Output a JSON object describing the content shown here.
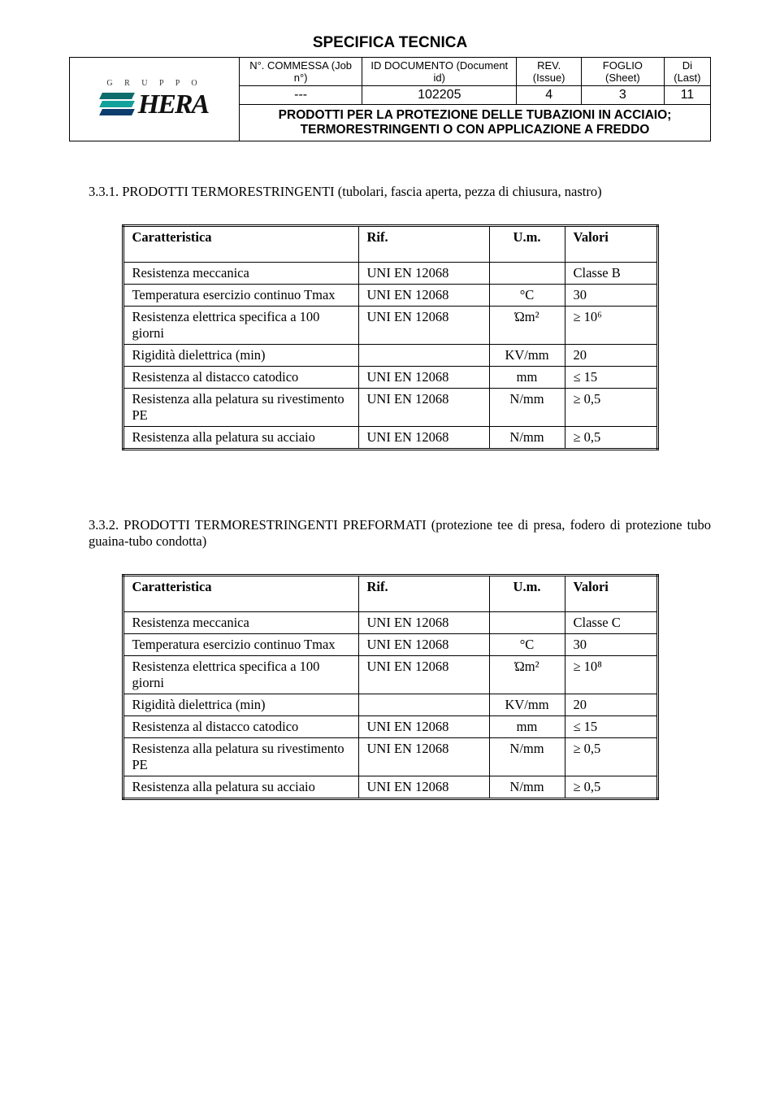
{
  "header": {
    "title": "SPECIFICA TECNICA",
    "labels": {
      "commessa": "N°. COMMESSA (Job n°)",
      "docid": "ID DOCUMENTO (Document id)",
      "rev": "REV. (Issue)",
      "foglio": "FOGLIO (Sheet)",
      "di": "Di (Last)"
    },
    "values": {
      "commessa": "---",
      "docid": "102205",
      "rev": "4",
      "foglio": "3",
      "di": "11"
    },
    "subtitle_l1": "PRODOTTI PER LA PROTEZIONE DELLE TUBAZIONI IN ACCIAIO;",
    "subtitle_l2": "TERMORESTRINGENTI O CON APPLICAZIONE A FREDDO",
    "logo": {
      "gruppo": "G R U P P O",
      "brand": "HERA",
      "stripe1": "#0d6c6c",
      "stripe2": "#12a19b",
      "stripe3": "#0d3d6c"
    }
  },
  "section1": {
    "heading": "3.3.1. PRODOTTI TERMORESTRINGENTI (tubolari, fascia aperta, pezza di chiusura, nastro)",
    "header": {
      "c": "Caratteristica",
      "r": "Rif.",
      "u": "U.m.",
      "v": "Valori"
    },
    "rows": [
      {
        "c": "Resistenza meccanica",
        "r": "UNI EN 12068",
        "u": "",
        "v": "Classe B"
      },
      {
        "c": "Temperatura esercizio continuo Tmax",
        "r": "UNI EN 12068",
        "u": "°C",
        "v": "30"
      },
      {
        "c": "Resistenza elettrica specifica a 100 giorni",
        "r": "UNI EN 12068",
        "u": "Ώm²",
        "v": "≥ 10⁶"
      },
      {
        "c": "Rigidità dielettrica (min)",
        "r": "",
        "u": "KV/mm",
        "v": "20"
      },
      {
        "c": "Resistenza al distacco catodico",
        "r": "UNI EN 12068",
        "u": "mm",
        "v": "≤ 15"
      },
      {
        "c": "Resistenza alla pelatura su rivestimento PE",
        "r": "UNI EN 12068",
        "u": "N/mm",
        "v": "≥ 0,5"
      },
      {
        "c": "Resistenza alla pelatura su acciaio",
        "r": "UNI EN 12068",
        "u": "N/mm",
        "v": "≥ 0,5"
      }
    ]
  },
  "section2": {
    "heading": "3.3.2. PRODOTTI TERMORESTRINGENTI PREFORMATI (protezione tee di presa, fodero di protezione tubo guaina-tubo condotta)",
    "header": {
      "c": "Caratteristica",
      "r": "Rif.",
      "u": "U.m.",
      "v": "Valori"
    },
    "rows": [
      {
        "c": "Resistenza meccanica",
        "r": "UNI EN 12068",
        "u": "",
        "v": "Classe C"
      },
      {
        "c": "Temperatura esercizio continuo Tmax",
        "r": "UNI EN 12068",
        "u": "°C",
        "v": "30"
      },
      {
        "c": "Resistenza elettrica specifica a 100 giorni",
        "r": "UNI EN 12068",
        "u": "Ώm²",
        "v": "≥ 10⁸"
      },
      {
        "c": "Rigidità dielettrica (min)",
        "r": "",
        "u": "KV/mm",
        "v": "20"
      },
      {
        "c": "Resistenza al distacco catodico",
        "r": "UNI EN 12068",
        "u": "mm",
        "v": "≤ 15"
      },
      {
        "c": "Resistenza alla pelatura su rivestimento PE",
        "r": "UNI EN 12068",
        "u": "N/mm",
        "v": "≥ 0,5"
      },
      {
        "c": "Resistenza alla pelatura su acciaio",
        "r": "UNI EN 12068",
        "u": "N/mm",
        "v": "≥ 0,5"
      }
    ]
  }
}
